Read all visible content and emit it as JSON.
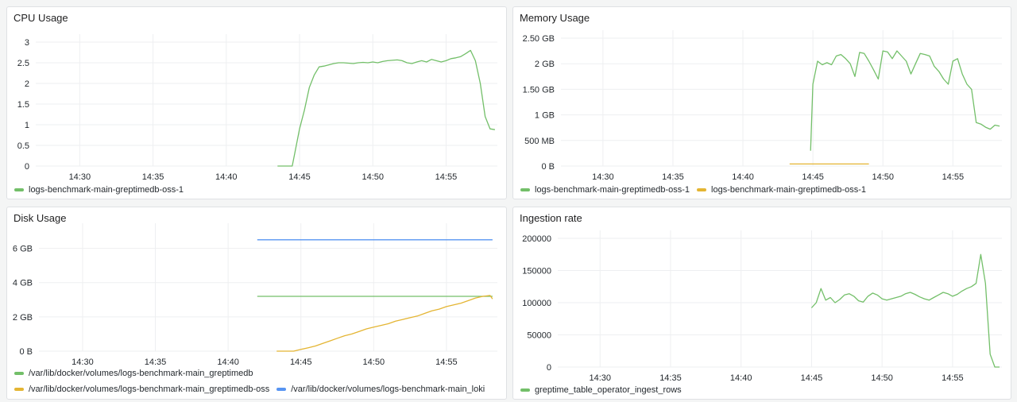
{
  "colors": {
    "green": "#73bf69",
    "yellow": "#e4b533",
    "blue": "#5794f2",
    "grid": "#eeeff1"
  },
  "panels": [
    {
      "id": "cpu",
      "title": "CPU Usage",
      "legend": [
        {
          "label": "logs-benchmark-main-greptimedb-oss-1",
          "color": "#73bf69"
        }
      ],
      "chart_data": {
        "type": "line",
        "x_ticks": [
          "14:30",
          "14:35",
          "14:40",
          "14:45",
          "14:50",
          "14:55"
        ],
        "xlim": [
          "14:27",
          "14:58:30"
        ],
        "y_ticks": [
          {
            "v": 0,
            "label": "0"
          },
          {
            "v": 0.5,
            "label": "0.5"
          },
          {
            "v": 1,
            "label": "1"
          },
          {
            "v": 1.5,
            "label": "1.5"
          },
          {
            "v": 2,
            "label": "2"
          },
          {
            "v": 2.5,
            "label": "2.5"
          },
          {
            "v": 3,
            "label": "3"
          }
        ],
        "ylim": [
          0,
          3
        ],
        "series": [
          {
            "name": "logs-benchmark-main-greptimedb-oss-1",
            "color": "#73bf69",
            "x": [
              "14:43:30",
              "14:44:30",
              "14:44:40",
              "14:45",
              "14:45:20",
              "14:45:40",
              "14:46",
              "14:46:20",
              "14:46:40",
              "14:47",
              "14:47:20",
              "14:47:40",
              "14:48",
              "14:48:20",
              "14:48:40",
              "14:49",
              "14:49:20",
              "14:49:40",
              "14:50",
              "14:50:20",
              "14:50:40",
              "14:51",
              "14:51:20",
              "14:51:40",
              "14:52",
              "14:52:20",
              "14:52:40",
              "14:53",
              "14:53:20",
              "14:53:40",
              "14:54",
              "14:54:20",
              "14:54:40",
              "14:55",
              "14:55:20",
              "14:55:40",
              "14:56",
              "14:56:20",
              "14:56:40",
              "14:57",
              "14:57:20",
              "14:57:40",
              "14:58",
              "14:58:20"
            ],
            "y": [
              0,
              0,
              0.3,
              0.9,
              1.35,
              1.9,
              2.2,
              2.4,
              2.42,
              2.45,
              2.48,
              2.5,
              2.5,
              2.49,
              2.48,
              2.5,
              2.51,
              2.5,
              2.52,
              2.5,
              2.53,
              2.55,
              2.56,
              2.57,
              2.55,
              2.5,
              2.48,
              2.52,
              2.55,
              2.52,
              2.58,
              2.55,
              2.52,
              2.55,
              2.6,
              2.62,
              2.65,
              2.72,
              2.8,
              2.55,
              2.0,
              1.2,
              0.9,
              0.88
            ]
          }
        ]
      }
    },
    {
      "id": "memory",
      "title": "Memory Usage",
      "legend": [
        {
          "label": "logs-benchmark-main-greptimedb-oss-1",
          "color": "#73bf69"
        },
        {
          "label": "logs-benchmark-main-greptimedb-oss-1",
          "color": "#e4b533"
        }
      ],
      "chart_data": {
        "type": "line",
        "x_ticks": [
          "14:30",
          "14:35",
          "14:40",
          "14:45",
          "14:50",
          "14:55"
        ],
        "xlim": [
          "14:27",
          "14:58:30"
        ],
        "y_ticks": [
          {
            "v": 0,
            "label": "0 B"
          },
          {
            "v": 500,
            "label": "500 MB"
          },
          {
            "v": 1000,
            "label": "1 GB"
          },
          {
            "v": 1500,
            "label": "1.50 GB"
          },
          {
            "v": 2000,
            "label": "2 GB"
          },
          {
            "v": 2500,
            "label": "2.50 GB"
          }
        ],
        "ylim": [
          0,
          2500
        ],
        "y_unit": "MB",
        "series": [
          {
            "name": "logs-benchmark-main-greptimedb-oss-1",
            "color": "#73bf69",
            "x": [
              "14:44:50",
              "14:45",
              "14:45:20",
              "14:45:40",
              "14:46",
              "14:46:20",
              "14:46:40",
              "14:47",
              "14:47:20",
              "14:47:40",
              "14:48",
              "14:48:20",
              "14:48:40",
              "14:49",
              "14:49:20",
              "14:49:40",
              "14:50",
              "14:50:20",
              "14:50:40",
              "14:51",
              "14:51:20",
              "14:51:40",
              "14:52",
              "14:52:20",
              "14:52:40",
              "14:53",
              "14:53:20",
              "14:53:40",
              "14:54",
              "14:54:20",
              "14:54:40",
              "14:55",
              "14:55:20",
              "14:55:40",
              "14:56",
              "14:56:20",
              "14:56:40",
              "14:57",
              "14:57:20",
              "14:57:40",
              "14:58",
              "14:58:20"
            ],
            "y": [
              300,
              1600,
              2050,
              1980,
              2020,
              1980,
              2150,
              2180,
              2100,
              2000,
              1750,
              2220,
              2200,
              2050,
              1880,
              1700,
              2250,
              2230,
              2100,
              2250,
              2150,
              2050,
              1800,
              2000,
              2200,
              2180,
              2150,
              1950,
              1850,
              1700,
              1600,
              2050,
              2100,
              1800,
              1600,
              1500,
              850,
              820,
              760,
              720,
              800,
              780
            ]
          },
          {
            "name": "logs-benchmark-main-greptimedb-oss-1",
            "color": "#e4b533",
            "x": [
              "14:43:20",
              "14:49"
            ],
            "y": [
              40,
              40
            ]
          }
        ]
      }
    },
    {
      "id": "disk",
      "title": "Disk Usage",
      "legend": [
        {
          "label": "/var/lib/docker/volumes/logs-benchmark-main_greptimedb",
          "color": "#73bf69"
        },
        {
          "label": "/var/lib/docker/volumes/logs-benchmark-main_greptimedb-oss",
          "color": "#e4b533"
        },
        {
          "label": "/var/lib/docker/volumes/logs-benchmark-main_loki",
          "color": "#5794f2"
        }
      ],
      "chart_data": {
        "type": "line",
        "x_ticks": [
          "14:30",
          "14:35",
          "14:40",
          "14:45",
          "14:50",
          "14:55"
        ],
        "xlim": [
          "14:27",
          "14:58:30"
        ],
        "y_ticks": [
          {
            "v": 0,
            "label": "0 B"
          },
          {
            "v": 2,
            "label": "2 GB"
          },
          {
            "v": 4,
            "label": "4 GB"
          },
          {
            "v": 6,
            "label": "6 GB"
          }
        ],
        "ylim": [
          0,
          7
        ],
        "y_unit": "GB",
        "series": [
          {
            "name": "/var/lib/docker/volumes/logs-benchmark-main_greptimedb",
            "color": "#73bf69",
            "x": [
              "14:42",
              "14:58:10"
            ],
            "y": [
              3.2,
              3.2
            ]
          },
          {
            "name": "/var/lib/docker/volumes/logs-benchmark-main_greptimedb-oss",
            "color": "#e4b533",
            "x": [
              "14:43:20",
              "14:44",
              "14:44:30",
              "14:45",
              "14:45:30",
              "14:46",
              "14:46:30",
              "14:47",
              "14:47:30",
              "14:48",
              "14:48:30",
              "14:49",
              "14:49:30",
              "14:50",
              "14:50:30",
              "14:51",
              "14:51:30",
              "14:52",
              "14:52:30",
              "14:53",
              "14:53:30",
              "14:54",
              "14:54:30",
              "14:55",
              "14:55:30",
              "14:56",
              "14:56:30",
              "14:57",
              "14:57:30",
              "14:58",
              "14:58:10"
            ],
            "y": [
              0,
              0,
              0,
              0.1,
              0.2,
              0.3,
              0.45,
              0.6,
              0.75,
              0.9,
              1.0,
              1.15,
              1.3,
              1.4,
              1.5,
              1.6,
              1.75,
              1.85,
              1.95,
              2.05,
              2.2,
              2.35,
              2.45,
              2.6,
              2.7,
              2.8,
              2.95,
              3.1,
              3.2,
              3.25,
              3.05
            ]
          },
          {
            "name": "/var/lib/docker/volumes/logs-benchmark-main_loki",
            "color": "#5794f2",
            "x": [
              "14:42",
              "14:58:10"
            ],
            "y": [
              6.5,
              6.5
            ]
          }
        ]
      }
    },
    {
      "id": "ingestion",
      "title": "Ingestion rate",
      "legend": [
        {
          "label": "greptime_table_operator_ingest_rows",
          "color": "#73bf69"
        }
      ],
      "chart_data": {
        "type": "line",
        "x_ticks": [
          "14:30",
          "14:35",
          "14:40",
          "14:45",
          "14:50",
          "14:55"
        ],
        "xlim": [
          "14:27",
          "14:58:30"
        ],
        "y_ticks": [
          {
            "v": 0,
            "label": "0"
          },
          {
            "v": 50000,
            "label": "50000"
          },
          {
            "v": 100000,
            "label": "100000"
          },
          {
            "v": 150000,
            "label": "150000"
          },
          {
            "v": 200000,
            "label": "200000"
          }
        ],
        "ylim": [
          0,
          200000
        ],
        "series": [
          {
            "name": "greptime_table_operator_ingest_rows",
            "color": "#73bf69",
            "x": [
              "14:45",
              "14:45:20",
              "14:45:40",
              "14:46",
              "14:46:20",
              "14:46:40",
              "14:47",
              "14:47:20",
              "14:47:40",
              "14:48",
              "14:48:20",
              "14:48:40",
              "14:49",
              "14:49:20",
              "14:49:40",
              "14:50",
              "14:50:20",
              "14:50:40",
              "14:51",
              "14:51:20",
              "14:51:40",
              "14:52",
              "14:52:20",
              "14:52:40",
              "14:53",
              "14:53:20",
              "14:53:40",
              "14:54",
              "14:54:20",
              "14:54:40",
              "14:55",
              "14:55:20",
              "14:55:40",
              "14:56",
              "14:56:20",
              "14:56:40",
              "14:57",
              "14:57:20",
              "14:57:40",
              "14:58",
              "14:58:20"
            ],
            "y": [
              92000,
              100000,
              122000,
              104000,
              108000,
              100000,
              105000,
              112000,
              114000,
              110000,
              103000,
              101000,
              110000,
              115000,
              112000,
              106000,
              104000,
              106000,
              108000,
              110000,
              114000,
              116000,
              113000,
              109000,
              106000,
              104000,
              108000,
              112000,
              116000,
              114000,
              110000,
              113000,
              118000,
              122000,
              125000,
              130000,
              175000,
              130000,
              20000,
              0,
              0
            ]
          }
        ]
      }
    }
  ]
}
